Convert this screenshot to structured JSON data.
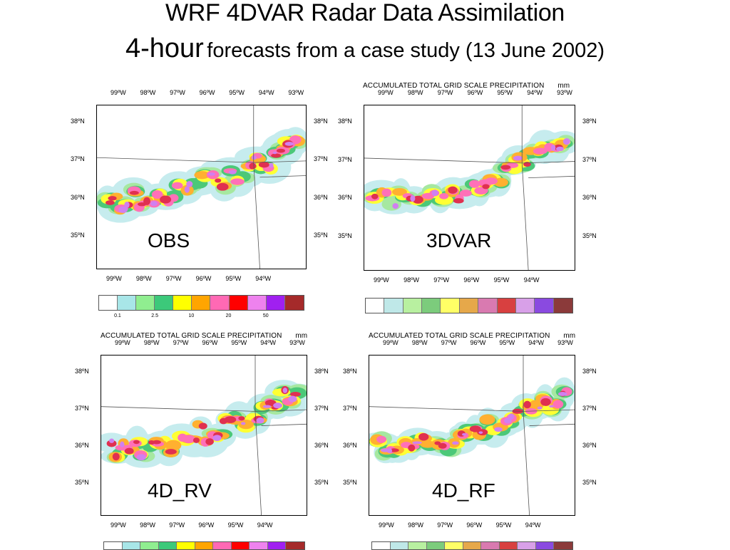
{
  "title": {
    "line1": "WRF 4DVAR Radar Data Assimilation",
    "line2_big": "4-hour",
    "line2_small": "forecasts from a case study (13 June 2002)"
  },
  "map_header": {
    "left": "ACCUMULATED TOTAL GRID SCALE PRECIPITATION",
    "right": "mm"
  },
  "lon_top": [
    "99ºW",
    "98ºW",
    "97ºW",
    "96ºW",
    "95ºW",
    "94ºW",
    "93ºW"
  ],
  "lon_bottom": [
    "99ºW",
    "98ºW",
    "97ºW",
    "96ºW",
    "95ºW",
    "94ºW"
  ],
  "lat_labels": [
    "38ºN",
    "37ºN",
    "36ºN",
    "35ºN"
  ],
  "panels": [
    {
      "label": "OBS"
    },
    {
      "label": "3DVAR"
    },
    {
      "label": "4D_RV"
    },
    {
      "label": "4D_RF"
    }
  ],
  "colorbar": {
    "obs_colors": [
      "#ffffff",
      "#a8e6e8",
      "#90ee90",
      "#3cc97a",
      "#ffff00",
      "#ffa500",
      "#ff69b4",
      "#ff0000",
      "#ee82ee",
      "#a020f0",
      "#a52a2a"
    ],
    "sim_colors": [
      "#ffffff",
      "#bfe8e8",
      "#b8f0a0",
      "#7ccc7c",
      "#ffff66",
      "#e6a84a",
      "#d97ab0",
      "#d84040",
      "#d8a0e8",
      "#8a4ae0",
      "#8b3a3a"
    ],
    "labels": [
      "0.1",
      "2.5",
      "10",
      "20",
      "50"
    ]
  }
}
